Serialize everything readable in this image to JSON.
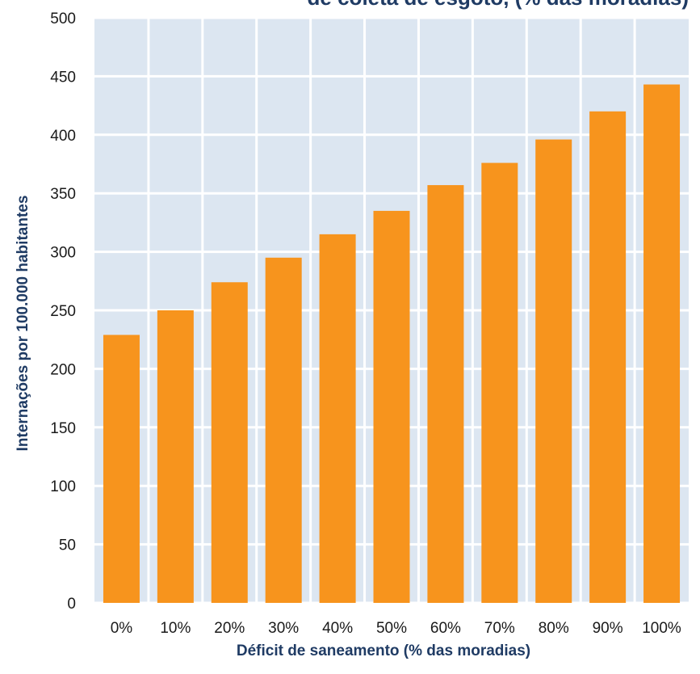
{
  "chart_data": {
    "type": "bar",
    "title": "de coleta de esgoto, (% das moradias)",
    "xlabel": "Déficit de saneamento (% das moradias)",
    "ylabel": "Internações por 100.000 habitantes",
    "categories": [
      "0%",
      "10%",
      "20%",
      "30%",
      "40%",
      "50%",
      "60%",
      "70%",
      "80%",
      "90%",
      "100%"
    ],
    "values": [
      229,
      250,
      274,
      295,
      315,
      335,
      357,
      376,
      396,
      420,
      443
    ],
    "ylim": [
      0,
      500
    ],
    "yticks": [
      0,
      50,
      100,
      150,
      200,
      250,
      300,
      350,
      400,
      450,
      500
    ],
    "grid": true,
    "colors": {
      "bar": "#f7941d",
      "plot_background": "#dce6f1",
      "grid": "#ffffff",
      "text": "#1f3b64"
    }
  }
}
